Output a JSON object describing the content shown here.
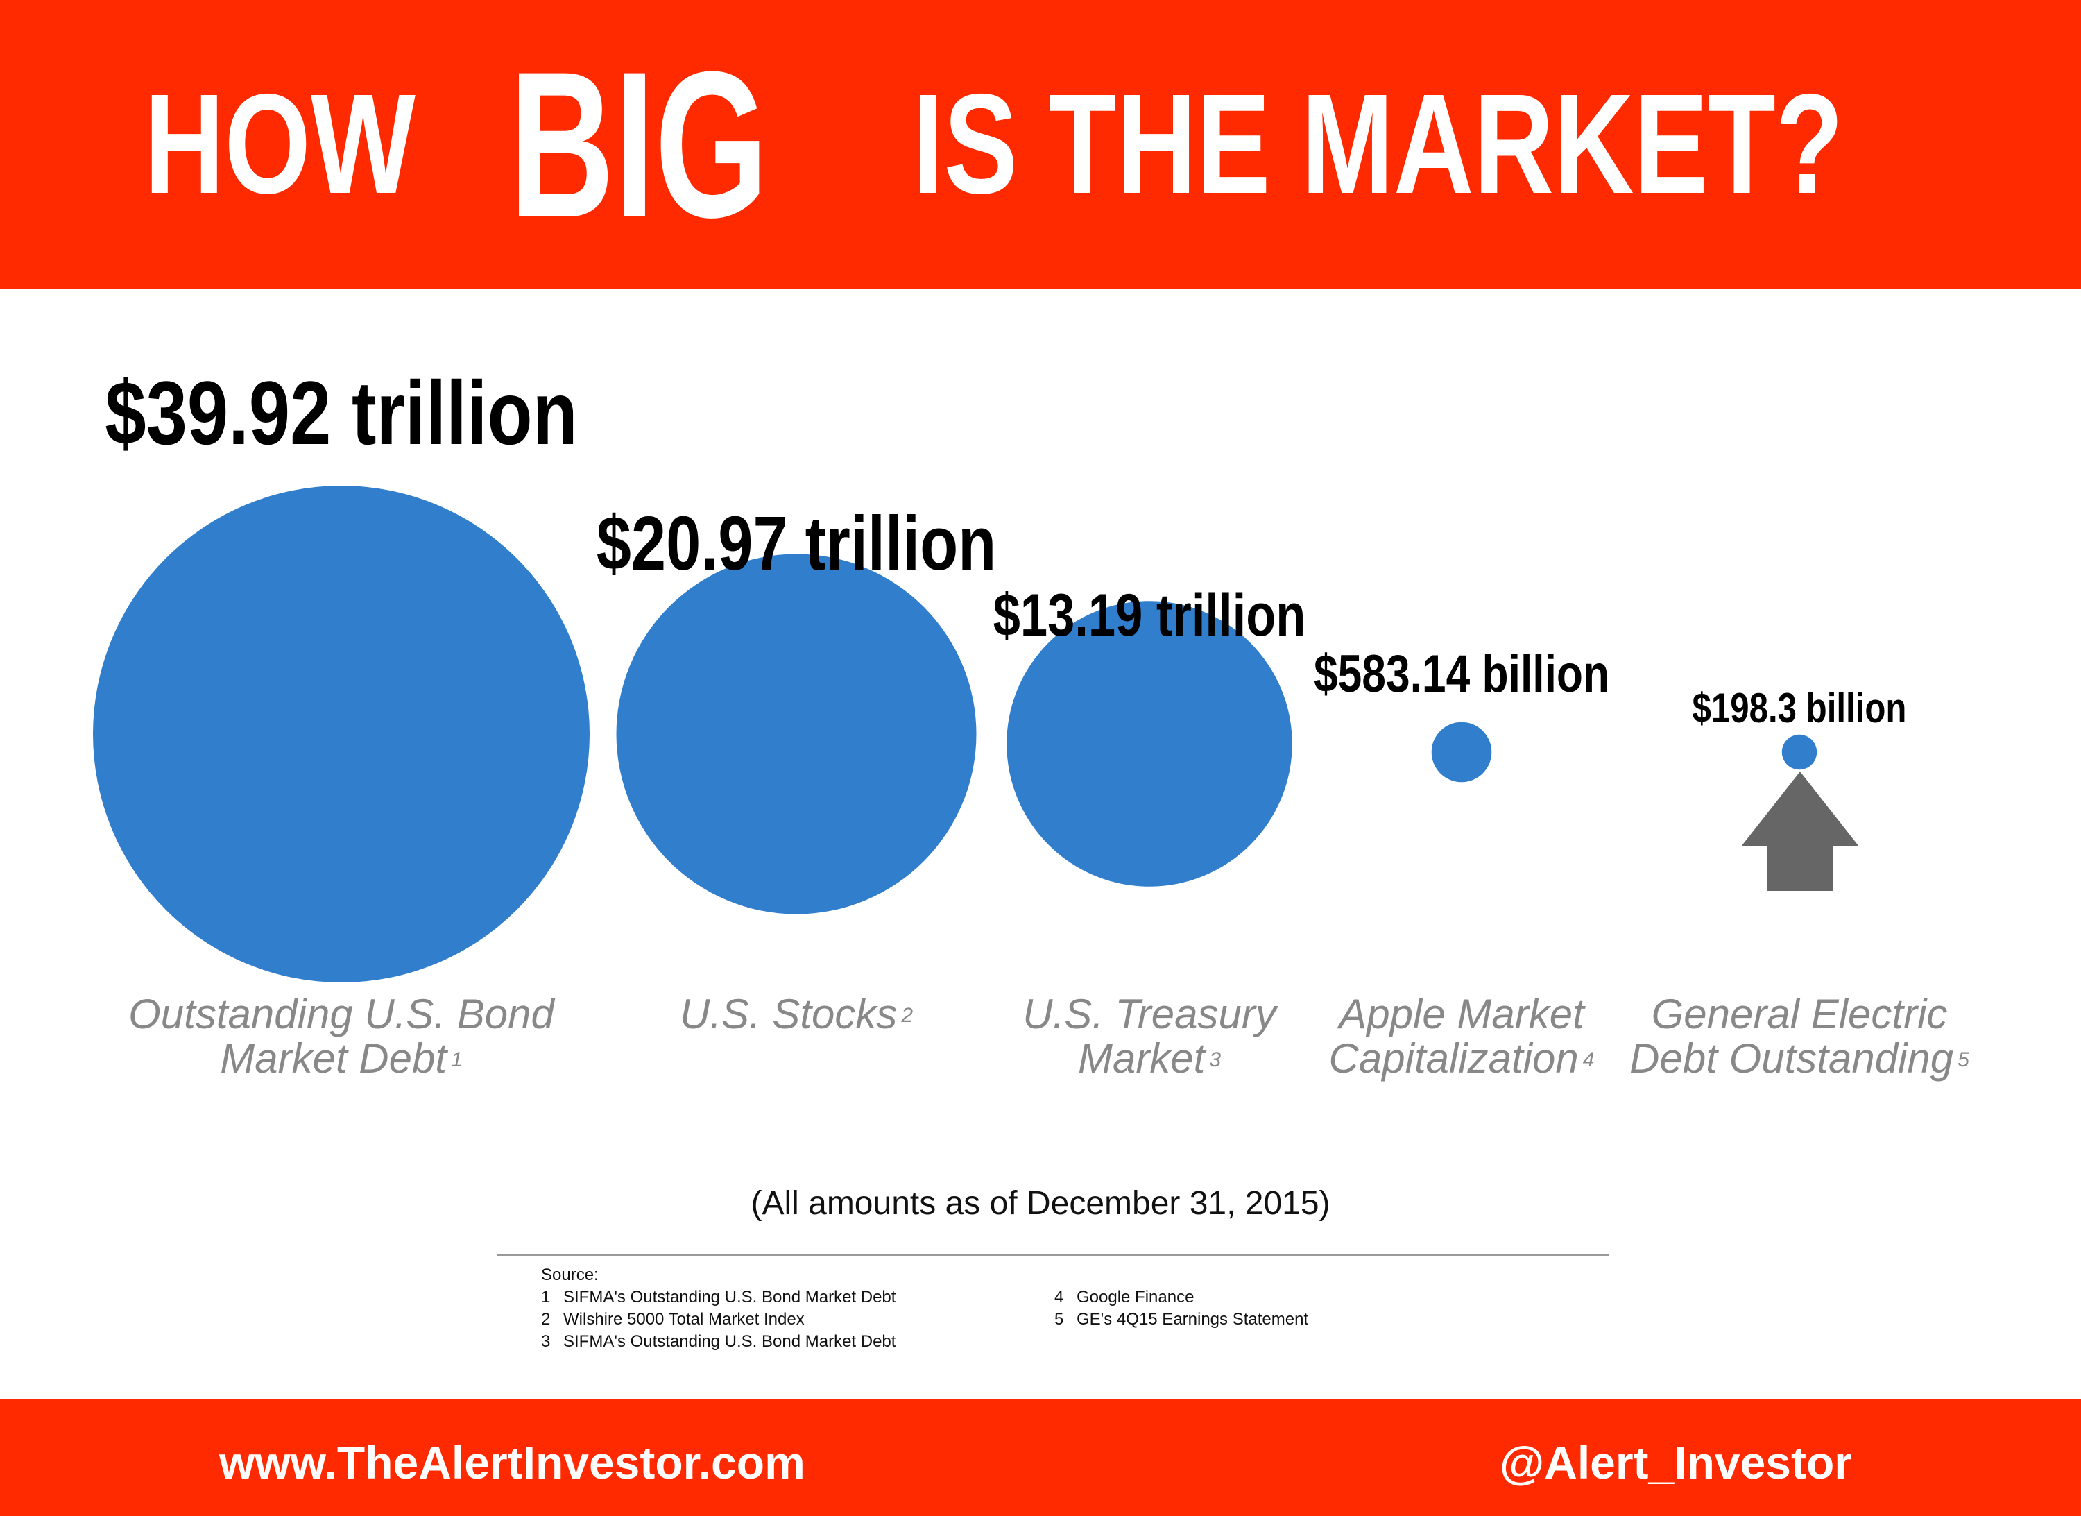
{
  "header": {
    "title_part1": "HOW",
    "title_big": "BIG",
    "title_part2": "IS THE MARKET?"
  },
  "chart_data": {
    "type": "bubble",
    "title": "HOW BIG IS THE MARKET?",
    "categories": [
      {
        "line1": "Outstanding U.S. Bond",
        "line2": "Market Debt",
        "footnote": "1"
      },
      {
        "line1": "U.S. Stocks",
        "line2": "",
        "footnote": "2"
      },
      {
        "line1": "U.S. Treasury",
        "line2": "Market",
        "footnote": "3"
      },
      {
        "line1": "Apple Market",
        "line2": "Capitalization",
        "footnote": "4"
      },
      {
        "line1": "General Electric",
        "line2": "Debt Outstanding",
        "footnote": "5"
      }
    ],
    "values": [
      39920,
      20970,
      13190,
      583.14,
      198.3
    ],
    "value_unit": "billion USD",
    "value_labels": [
      "$39.92 trillion",
      "$20.97 trillion",
      "$13.19 trillion",
      "$583.14 billion",
      "$198.3 billion"
    ],
    "note": "(All amounts as of December 31, 2015)",
    "bubble_color": "#317ecd"
  },
  "arrow": {
    "icon": "up-arrow-icon",
    "color": "#666666"
  },
  "sources": {
    "heading": "Source:",
    "items": [
      {
        "num": "1",
        "text": "SIFMA's Outstanding U.S. Bond Market Debt"
      },
      {
        "num": "2",
        "text": "Wilshire 5000 Total Market Index"
      },
      {
        "num": "3",
        "text": "SIFMA's Outstanding U.S. Bond Market Debt"
      },
      {
        "num": "4",
        "text": "Google Finance"
      },
      {
        "num": "5",
        "text": "GE's 4Q15 Earnings Statement"
      }
    ]
  },
  "footer": {
    "website": "www.TheAlertInvestor.com",
    "handle": "@Alert_Investor"
  },
  "colors": {
    "banner": "#ff2a00",
    "bubble": "#317ecd",
    "category_text": "#888888"
  }
}
